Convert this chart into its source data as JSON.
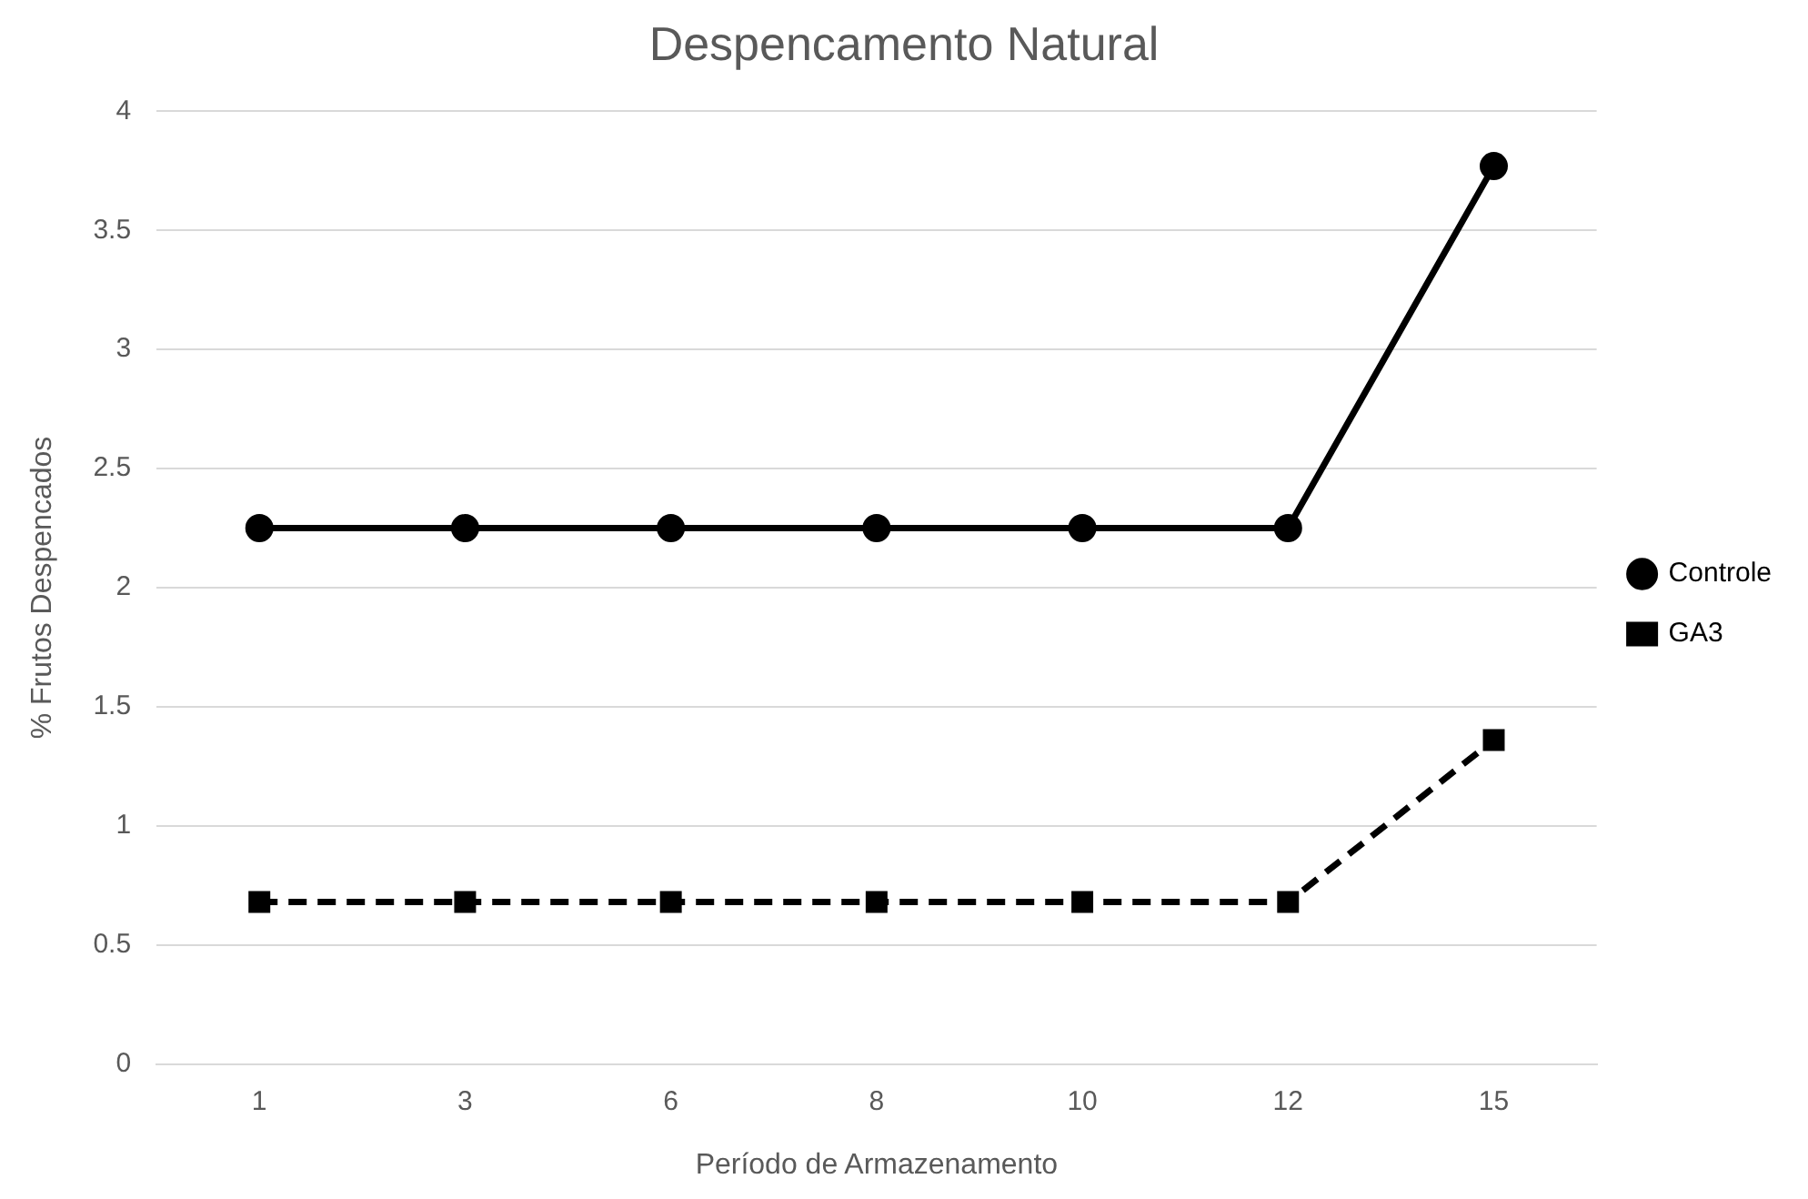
{
  "chart_data": {
    "type": "line",
    "title": "Despencamento Natural",
    "xlabel": "Período de Armazenamento",
    "ylabel": "% Frutos Despencados",
    "categories": [
      "1",
      "3",
      "6",
      "8",
      "10",
      "12",
      "15"
    ],
    "series": [
      {
        "name": "Controle",
        "color": "#000000",
        "marker": "circle",
        "line_style": "solid",
        "values": [
          2.25,
          2.25,
          2.25,
          2.25,
          2.25,
          2.25,
          3.77
        ]
      },
      {
        "name": "GA3",
        "color": "#000000",
        "marker": "square",
        "line_style": "dashed",
        "values": [
          0.68,
          0.68,
          0.68,
          0.68,
          0.68,
          0.68,
          1.36
        ]
      }
    ],
    "ylim": [
      0,
      4
    ],
    "yticks": [
      0,
      0.5,
      1,
      1.5,
      2,
      2.5,
      3,
      3.5,
      4
    ],
    "grid": "y",
    "legend": "right"
  }
}
